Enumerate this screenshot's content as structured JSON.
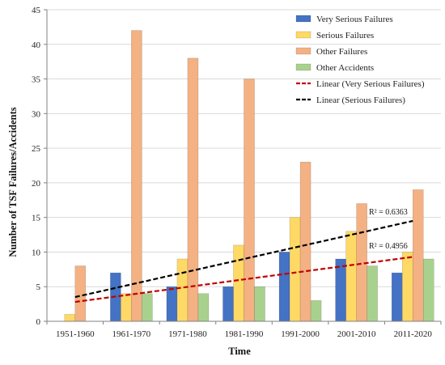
{
  "chart_data": {
    "type": "bar",
    "xlabel": "Time",
    "ylabel": "Number of TSF Failures/Accidents",
    "ylim": [
      0,
      45
    ],
    "yticks": [
      0,
      5,
      10,
      15,
      20,
      25,
      30,
      35,
      40,
      45
    ],
    "grid": "horizontal",
    "legend_position": "top-right",
    "categories": [
      "1951-1960",
      "1961-1970",
      "1971-1980",
      "1981-1990",
      "1991-2000",
      "2001-2010",
      "2011-2020"
    ],
    "series": [
      {
        "name": "Very Serious Failures",
        "color": "#4472c4",
        "values": [
          0,
          7,
          5,
          5,
          10,
          9,
          7
        ]
      },
      {
        "name": "Serious Failures",
        "color": "#ffd966",
        "values": [
          1,
          4,
          9,
          11,
          15,
          13,
          10
        ]
      },
      {
        "name": "Other Failures",
        "color": "#f4b183",
        "values": [
          8,
          42,
          38,
          35,
          23,
          17,
          19
        ]
      },
      {
        "name": "Other Accidents",
        "color": "#a9d18e",
        "values": [
          0,
          4,
          4,
          5,
          3,
          8,
          9
        ]
      }
    ],
    "trendlines": [
      {
        "name": "Linear (Very Serious Failures)",
        "color": "#c00000",
        "start": 2.8,
        "end": 9.3,
        "r2_label": "R² = 0.4956"
      },
      {
        "name": "Linear (Serious Failures)",
        "color": "#000000",
        "start": 3.5,
        "end": 14.5,
        "r2_label": "R² = 0.6363"
      }
    ]
  }
}
